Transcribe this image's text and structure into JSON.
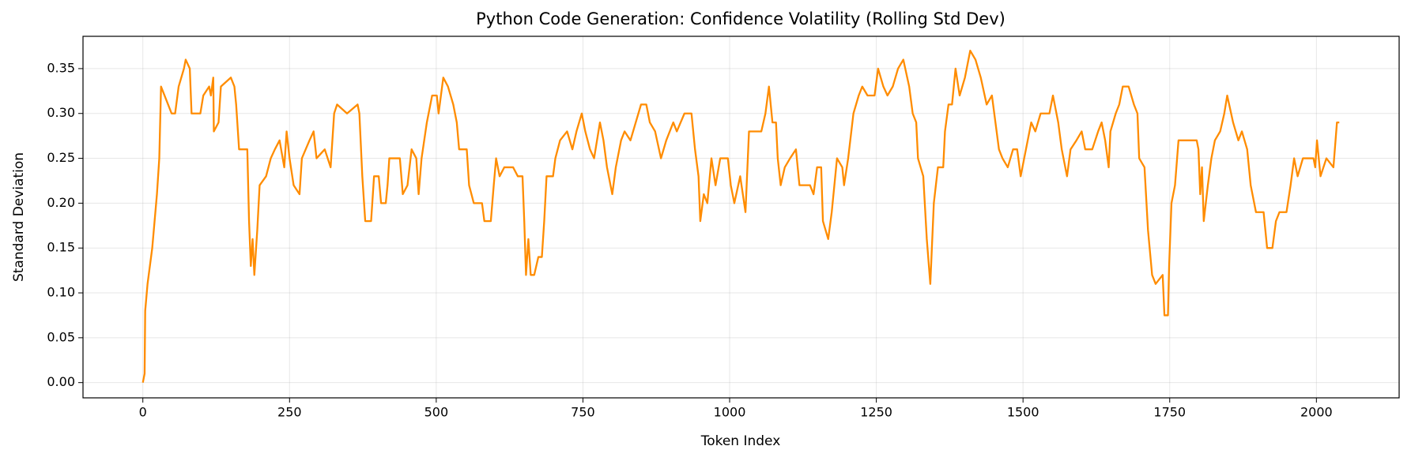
{
  "chart_data": {
    "type": "line",
    "title": "Python Code Generation: Confidence Volatility (Rolling Std Dev)",
    "x_label": "Token Index",
    "y_label": "Standard Deviation",
    "color": "#ff8c00",
    "grid": true,
    "xlim": [
      -102,
      2141
    ],
    "ylim": [
      -0.017,
      0.386
    ],
    "xticks": [
      0,
      250,
      500,
      750,
      1000,
      1250,
      1500,
      1750,
      2000
    ],
    "yticks": [
      {
        "value": 0,
        "label": "0.00"
      },
      0.05,
      {
        "value": 0.1,
        "label": "0.10"
      },
      0.15,
      {
        "value": 0.2,
        "label": "0.20"
      },
      0.25,
      {
        "value": 0.3,
        "label": "0.30"
      },
      0.35
    ],
    "x": [
      0,
      3,
      4,
      8,
      12,
      16,
      20,
      24,
      28,
      31,
      49,
      55,
      61,
      70,
      73,
      80,
      83,
      98,
      103,
      113,
      116,
      120,
      121,
      129,
      133,
      150,
      156,
      159,
      164,
      178,
      181,
      184,
      187,
      190,
      195,
      199,
      210,
      218,
      225,
      233,
      241,
      245,
      250,
      257,
      267,
      271,
      284,
      291,
      296,
      310,
      320,
      326,
      331,
      348,
      366,
      369,
      374,
      379,
      389,
      394,
      402,
      406,
      414,
      417,
      420,
      438,
      443,
      451,
      458,
      466,
      470,
      475,
      484,
      493,
      501,
      504,
      512,
      520,
      529,
      535,
      539,
      552,
      556,
      564,
      578,
      582,
      593,
      598,
      602,
      608,
      616,
      631,
      639,
      647,
      650,
      653,
      657,
      661,
      667,
      674,
      680,
      684,
      688,
      699,
      703,
      711,
      723,
      732,
      739,
      748,
      754,
      762,
      769,
      779,
      785,
      791,
      800,
      806,
      815,
      821,
      831,
      840,
      849,
      858,
      864,
      873,
      883,
      892,
      904,
      910,
      923,
      935,
      941,
      947,
      950,
      956,
      962,
      969,
      976,
      984,
      997,
      1002,
      1008,
      1018,
      1027,
      1033,
      1054,
      1061,
      1067,
      1073,
      1079,
      1082,
      1087,
      1094,
      1103,
      1113,
      1119,
      1137,
      1143,
      1149,
      1156,
      1159,
      1168,
      1174,
      1183,
      1192,
      1195,
      1202,
      1211,
      1220,
      1226,
      1235,
      1247,
      1253,
      1262,
      1269,
      1278,
      1287,
      1296,
      1306,
      1312,
      1318,
      1321,
      1330,
      1336,
      1342,
      1348,
      1355,
      1364,
      1367,
      1373,
      1379,
      1385,
      1392,
      1401,
      1410,
      1419,
      1428,
      1438,
      1447,
      1453,
      1459,
      1465,
      1474,
      1483,
      1490,
      1496,
      1505,
      1514,
      1521,
      1530,
      1545,
      1551,
      1560,
      1566,
      1575,
      1581,
      1591,
      1600,
      1606,
      1618,
      1628,
      1634,
      1640,
      1646,
      1649,
      1658,
      1664,
      1670,
      1680,
      1689,
      1695,
      1698,
      1707,
      1713,
      1720,
      1726,
      1738,
      1741,
      1747,
      1749,
      1753,
      1759,
      1765,
      1781,
      1796,
      1799,
      1802,
      1805,
      1808,
      1815,
      1821,
      1827,
      1836,
      1843,
      1848,
      1858,
      1867,
      1873,
      1882,
      1888,
      1897,
      1910,
      1916,
      1925,
      1931,
      1937,
      1949,
      1956,
      1962,
      1968,
      1977,
      1995,
      1998,
      2001,
      2007,
      2017,
      2029,
      2035,
      2039
    ],
    "values": [
      0,
      0.01,
      0.08,
      0.11,
      0.13,
      0.15,
      0.18,
      0.21,
      0.25,
      0.33,
      0.3,
      0.3,
      0.33,
      0.35,
      0.36,
      0.35,
      0.3,
      0.3,
      0.32,
      0.33,
      0.32,
      0.34,
      0.28,
      0.29,
      0.33,
      0.34,
      0.33,
      0.31,
      0.26,
      0.26,
      0.18,
      0.13,
      0.16,
      0.12,
      0.17,
      0.22,
      0.23,
      0.25,
      0.26,
      0.27,
      0.24,
      0.28,
      0.25,
      0.22,
      0.21,
      0.25,
      0.27,
      0.28,
      0.25,
      0.26,
      0.24,
      0.3,
      0.31,
      0.3,
      0.31,
      0.3,
      0.23,
      0.18,
      0.18,
      0.23,
      0.23,
      0.2,
      0.2,
      0.22,
      0.25,
      0.25,
      0.21,
      0.22,
      0.26,
      0.25,
      0.21,
      0.25,
      0.29,
      0.32,
      0.32,
      0.3,
      0.34,
      0.33,
      0.31,
      0.29,
      0.26,
      0.26,
      0.22,
      0.2,
      0.2,
      0.18,
      0.18,
      0.22,
      0.25,
      0.23,
      0.24,
      0.24,
      0.23,
      0.23,
      0.18,
      0.12,
      0.16,
      0.12,
      0.12,
      0.14,
      0.14,
      0.18,
      0.23,
      0.23,
      0.25,
      0.27,
      0.28,
      0.26,
      0.28,
      0.3,
      0.28,
      0.26,
      0.25,
      0.29,
      0.27,
      0.24,
      0.21,
      0.24,
      0.27,
      0.28,
      0.27,
      0.29,
      0.31,
      0.31,
      0.29,
      0.28,
      0.25,
      0.27,
      0.29,
      0.28,
      0.3,
      0.3,
      0.26,
      0.23,
      0.18,
      0.21,
      0.2,
      0.25,
      0.22,
      0.25,
      0.25,
      0.22,
      0.2,
      0.23,
      0.19,
      0.28,
      0.28,
      0.3,
      0.33,
      0.29,
      0.29,
      0.25,
      0.22,
      0.24,
      0.25,
      0.26,
      0.22,
      0.22,
      0.21,
      0.24,
      0.24,
      0.18,
      0.16,
      0.19,
      0.25,
      0.24,
      0.22,
      0.25,
      0.3,
      0.32,
      0.33,
      0.32,
      0.32,
      0.35,
      0.33,
      0.32,
      0.33,
      0.35,
      0.36,
      0.33,
      0.3,
      0.29,
      0.25,
      0.23,
      0.16,
      0.11,
      0.2,
      0.24,
      0.24,
      0.28,
      0.31,
      0.31,
      0.35,
      0.32,
      0.34,
      0.37,
      0.36,
      0.34,
      0.31,
      0.32,
      0.29,
      0.26,
      0.25,
      0.24,
      0.26,
      0.26,
      0.23,
      0.26,
      0.29,
      0.28,
      0.3,
      0.3,
      0.32,
      0.29,
      0.26,
      0.23,
      0.26,
      0.27,
      0.28,
      0.26,
      0.26,
      0.28,
      0.29,
      0.27,
      0.24,
      0.28,
      0.3,
      0.31,
      0.33,
      0.33,
      0.31,
      0.3,
      0.25,
      0.24,
      0.17,
      0.12,
      0.11,
      0.12,
      0.075,
      0.075,
      0.13,
      0.2,
      0.22,
      0.27,
      0.27,
      0.27,
      0.26,
      0.21,
      0.24,
      0.18,
      0.22,
      0.25,
      0.27,
      0.28,
      0.3,
      0.32,
      0.29,
      0.27,
      0.28,
      0.26,
      0.22,
      0.19,
      0.19,
      0.15,
      0.15,
      0.18,
      0.19,
      0.19,
      0.22,
      0.25,
      0.23,
      0.25,
      0.25,
      0.24,
      0.27,
      0.23,
      0.25,
      0.24,
      0.29,
      0.29
    ]
  }
}
